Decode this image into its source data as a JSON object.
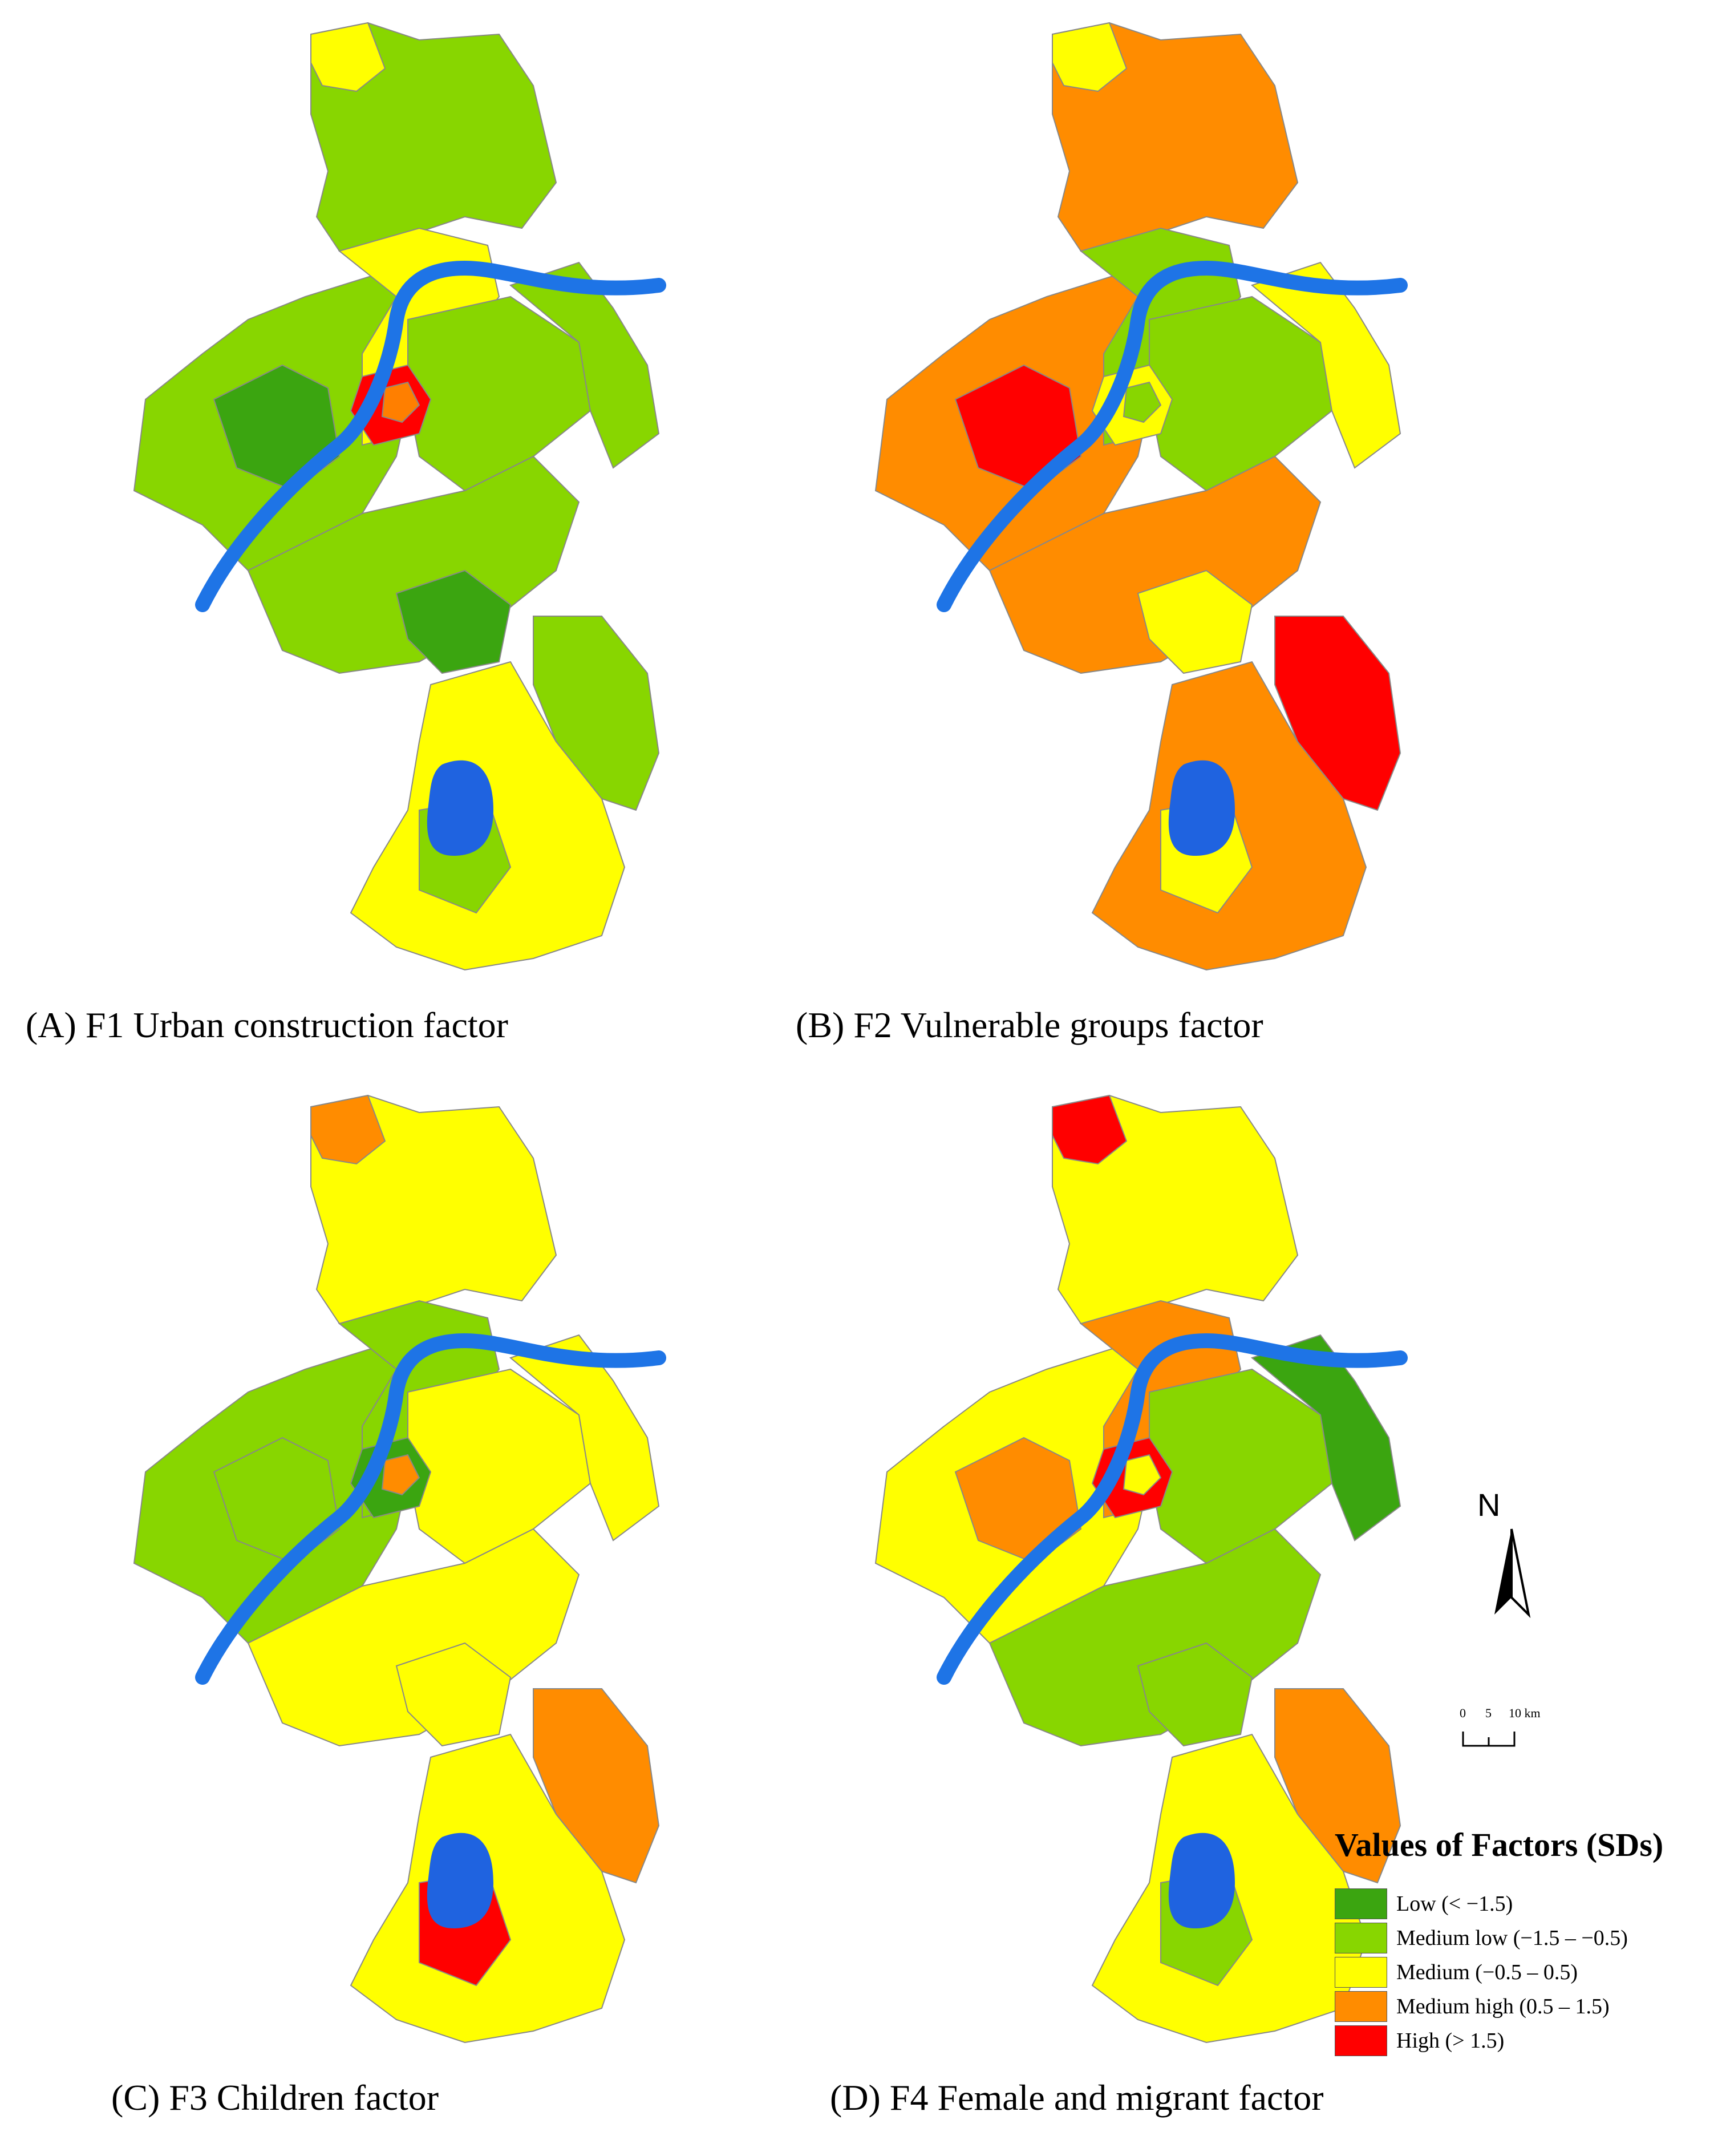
{
  "panels": [
    {
      "id": "A",
      "caption": "(A) F1 Urban construction factor",
      "fills": {
        "north": "#88d600",
        "north_tip": "#ffff00",
        "ring": "#ffff00",
        "west": "#88d600",
        "west_core": "#3ba510",
        "centre_east": "#88d600",
        "east": "#88d600",
        "south_mid": "#88d600",
        "south_mid_core": "#3ba510",
        "south_east": "#88d600",
        "south": "#ffff00",
        "south_inner": "#88d600",
        "core": "#ff0000",
        "core_ring": "#ff7f00"
      }
    },
    {
      "id": "B",
      "caption": "(B) F2 Vulnerable groups factor",
      "fills": {
        "north": "#ff8c00",
        "north_tip": "#ffff00",
        "ring": "#88d600",
        "west": "#ff8c00",
        "west_core": "#ff0000",
        "centre_east": "#88d600",
        "east": "#ffff00",
        "south_mid": "#ff8c00",
        "south_mid_core": "#ffff00",
        "south_east": "#ff0000",
        "south": "#ff8c00",
        "south_inner": "#ffff00",
        "core": "#ffff00",
        "core_ring": "#88d600"
      }
    },
    {
      "id": "C",
      "caption": "(C) F3 Children factor",
      "fills": {
        "north": "#ffff00",
        "north_tip": "#ff8c00",
        "ring": "#88d600",
        "west": "#88d600",
        "west_core": "#88d600",
        "centre_east": "#ffff00",
        "east": "#ffff00",
        "south_mid": "#ffff00",
        "south_mid_core": "#ffff00",
        "south_east": "#ff8c00",
        "south": "#ffff00",
        "south_inner": "#ff0000",
        "core": "#3ba510",
        "core_ring": "#ff8c00"
      }
    },
    {
      "id": "D",
      "caption": "(D) F4 Female and migrant factor",
      "fills": {
        "north": "#ffff00",
        "north_tip": "#ff0000",
        "ring": "#ff8c00",
        "west": "#ffff00",
        "west_core": "#ff8c00",
        "centre_east": "#88d600",
        "east": "#3ba510",
        "south_mid": "#88d600",
        "south_mid_core": "#88d600",
        "south_east": "#ff8c00",
        "south": "#ffff00",
        "south_inner": "#88d600",
        "core": "#ff0000",
        "core_ring": "#ffff00"
      }
    }
  ],
  "water_color": "#1f63e0",
  "river_color": "#1e74e6",
  "north_arrow": {
    "label": "N",
    "icon": "north-arrow-icon"
  },
  "scale_bar": {
    "ticks": [
      "0",
      "5",
      "10 km"
    ]
  },
  "legend": {
    "title": "Values of Factors (SDs)",
    "items": [
      {
        "label": "Low (< −1.5)",
        "color": "#3ba510"
      },
      {
        "label": "Medium low (−1.5 – −0.5)",
        "color": "#88d600"
      },
      {
        "label": "Medium (−0.5 – 0.5)",
        "color": "#ffff00"
      },
      {
        "label": "Medium high (0.5 – 1.5)",
        "color": "#ff8c00"
      },
      {
        "label": "High (> 1.5)",
        "color": "#ff0000"
      }
    ]
  }
}
